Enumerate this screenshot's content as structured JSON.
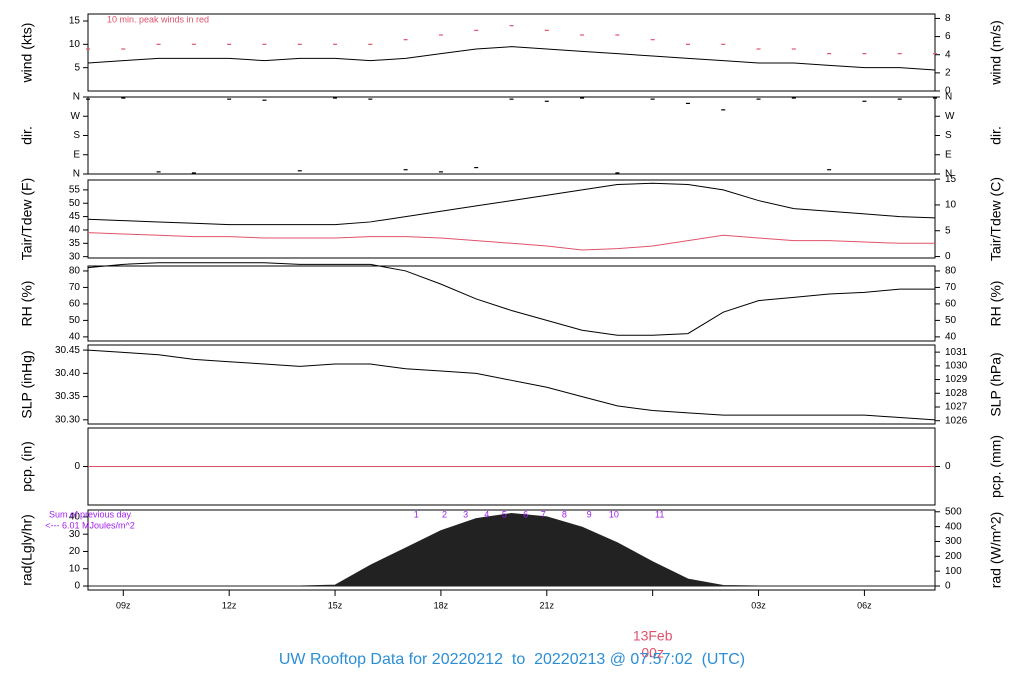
{
  "chart_data": [
    {
      "type": "line",
      "ylabel": "wind (kts)",
      "y2label": "wind (m/s)",
      "annotation": "10 min. peak winds in red",
      "ylim": [
        0,
        16.5
      ],
      "yticks": [
        5,
        10,
        15
      ],
      "y2lim": [
        0,
        8.49
      ],
      "y2ticks": [
        0,
        2,
        4,
        6,
        8
      ],
      "x": [
        8,
        9,
        10,
        11,
        12,
        13,
        14,
        15,
        16,
        17,
        18,
        19,
        20,
        21,
        22,
        23,
        24,
        25,
        26,
        27,
        28,
        29,
        30,
        31,
        32
      ],
      "series": [
        {
          "name": "wind",
          "color": "#000000",
          "style": "line",
          "values": [
            6,
            6.5,
            7,
            7,
            7,
            6.5,
            7,
            7,
            6.5,
            7,
            8,
            9,
            9.5,
            9,
            8.5,
            8,
            7.5,
            7,
            6.5,
            6,
            6,
            5.5,
            5,
            5,
            4.5
          ]
        },
        {
          "name": "peak",
          "color": "#df536b",
          "style": "dash",
          "values": [
            9,
            9,
            10,
            10,
            10,
            10,
            10,
            10,
            10,
            11,
            12,
            13,
            14,
            13,
            12,
            12,
            11,
            10,
            10,
            9,
            9,
            8,
            8,
            8,
            8
          ]
        }
      ]
    },
    {
      "type": "scatter",
      "ylabel": "dir.",
      "y2label": "dir.",
      "ylim": [
        0,
        360
      ],
      "yticks": [
        {
          "value": 0,
          "label": "N"
        },
        {
          "value": 90,
          "label": "E"
        },
        {
          "value": 180,
          "label": "S"
        },
        {
          "value": 270,
          "label": "W"
        },
        {
          "value": 360,
          "label": "N"
        }
      ],
      "y2lim": [
        0,
        360
      ],
      "y2ticks": [
        {
          "value": 0,
          "label": "N"
        },
        {
          "value": 90,
          "label": "E"
        },
        {
          "value": 180,
          "label": "S"
        },
        {
          "value": 270,
          "label": "W"
        },
        {
          "value": 360,
          "label": "N"
        }
      ],
      "x": [
        8,
        9,
        10,
        11,
        12,
        13,
        14,
        15,
        16,
        17,
        18,
        19,
        20,
        21,
        22,
        23,
        24,
        25,
        26,
        27,
        28,
        29,
        30,
        31,
        32
      ],
      "series": [
        {
          "name": "dir",
          "color": "#000000",
          "style": "dash",
          "values": [
            350,
            355,
            10,
            5,
            350,
            345,
            15,
            355,
            350,
            20,
            10,
            30,
            350,
            340,
            355,
            5,
            350,
            330,
            300,
            350,
            355,
            20,
            340,
            350,
            355
          ]
        }
      ]
    },
    {
      "type": "line",
      "ylabel": "Tair/Tdew (F)",
      "y2label": "Tair/Tdew (C)",
      "ylim": [
        29.5,
        58.7
      ],
      "yticks": [
        30,
        35,
        40,
        45,
        50,
        55
      ],
      "y2lim": [
        -0.28,
        14.83
      ],
      "y2ticks": [
        0,
        5,
        10,
        15
      ],
      "x": [
        8,
        9,
        10,
        11,
        12,
        13,
        14,
        15,
        16,
        17,
        18,
        19,
        20,
        21,
        22,
        23,
        24,
        25,
        26,
        27,
        28,
        29,
        30,
        31,
        32
      ],
      "series": [
        {
          "name": "Tair",
          "color": "#000000",
          "style": "line",
          "values": [
            44,
            43.5,
            43,
            42.5,
            42,
            42,
            42,
            42,
            43,
            45,
            47,
            49,
            51,
            53,
            55,
            57,
            57.5,
            57,
            55,
            51,
            48,
            47,
            46,
            45,
            44.5
          ]
        },
        {
          "name": "Tdew",
          "color": "#df536b",
          "style": "line",
          "values": [
            39,
            38.5,
            38,
            37.5,
            37.5,
            37,
            37,
            37,
            37.5,
            37.5,
            37,
            36,
            35,
            34,
            32.5,
            33,
            34,
            36,
            38,
            37,
            36,
            36,
            35.5,
            35,
            35
          ]
        }
      ]
    },
    {
      "type": "line",
      "ylabel": "RH (%)",
      "y2label": "RH (%)",
      "ylim": [
        37.5,
        83
      ],
      "yticks": [
        40,
        50,
        60,
        70,
        80
      ],
      "y2lim": [
        37.5,
        83
      ],
      "y2ticks": [
        40,
        50,
        60,
        70,
        80
      ],
      "x": [
        8,
        9,
        10,
        11,
        12,
        13,
        14,
        15,
        16,
        17,
        18,
        19,
        20,
        21,
        22,
        23,
        24,
        25,
        26,
        27,
        28,
        29,
        30,
        31,
        32
      ],
      "series": [
        {
          "name": "RH",
          "color": "#000000",
          "style": "line",
          "values": [
            82,
            84,
            85,
            85,
            85,
            85,
            84,
            84,
            84,
            80,
            72,
            63,
            56,
            50,
            44,
            41,
            41,
            42,
            55,
            62,
            64,
            66,
            67,
            69,
            69
          ]
        }
      ]
    },
    {
      "type": "line",
      "ylabel": "SLP (inHg)",
      "y2label": "SLP (hPa)",
      "ylim": [
        30.291,
        30.461
      ],
      "yticks": [
        {
          "value": 30.3,
          "label": "30.30"
        },
        30.35,
        {
          "value": 30.4,
          "label": "30.40"
        },
        30.45
      ],
      "y2lim": [
        1025.76,
        1031.52
      ],
      "y2ticks": [
        1026,
        1027,
        1028,
        1029,
        1030,
        1031
      ],
      "x": [
        8,
        9,
        10,
        11,
        12,
        13,
        14,
        15,
        16,
        17,
        18,
        19,
        20,
        21,
        22,
        23,
        24,
        25,
        26,
        27,
        28,
        29,
        30,
        31,
        32
      ],
      "series": [
        {
          "name": "SLP",
          "color": "#000000",
          "style": "line",
          "values": [
            30.45,
            30.445,
            30.44,
            30.43,
            30.425,
            30.42,
            30.415,
            30.42,
            30.42,
            30.41,
            30.405,
            30.4,
            30.385,
            30.37,
            30.35,
            30.33,
            30.32,
            30.315,
            30.31,
            30.31,
            30.31,
            30.31,
            30.31,
            30.305,
            30.3
          ]
        }
      ]
    },
    {
      "type": "line",
      "ylabel": "pcp. (in)",
      "y2label": "pcp. (mm)",
      "ylim": [
        -1,
        1
      ],
      "yticks": [
        0
      ],
      "y2lim": [
        -25.4,
        25.4
      ],
      "y2ticks": [
        0
      ],
      "x": [
        8,
        9,
        10,
        11,
        12,
        13,
        14,
        15,
        16,
        17,
        18,
        19,
        20,
        21,
        22,
        23,
        24,
        25,
        26,
        27,
        28,
        29,
        30,
        31,
        32
      ],
      "series": [
        {
          "name": "pcp",
          "color": "#df536b",
          "style": "line",
          "values": [
            0,
            0,
            0,
            0,
            0,
            0,
            0,
            0,
            0,
            0,
            0,
            0,
            0,
            0,
            0,
            0,
            0,
            0,
            0,
            0,
            0,
            0,
            0,
            0,
            0
          ]
        }
      ]
    },
    {
      "type": "area",
      "ylabel": "rad(Lgly/hr)",
      "y2label": "rad (W/m^2)",
      "ylim": [
        -2.3,
        44
      ],
      "yticks": [
        0,
        10,
        20,
        30,
        40
      ],
      "y2lim": [
        -27,
        512
      ],
      "y2ticks": [
        0,
        100,
        200,
        300,
        400,
        500
      ],
      "notes": [
        "Sum of previous day",
        "<--- 6.01 MJoules/m^2"
      ],
      "hour_labels": {
        "x": [
          17.3,
          18.1,
          18.7,
          19.3,
          19.8,
          20.4,
          20.9,
          21.5,
          22.2,
          22.9,
          24.2
        ],
        "labels": [
          "1",
          "2",
          "3",
          "4",
          "5",
          "6",
          "7",
          "8",
          "9",
          "10",
          "11"
        ]
      },
      "x": [
        8,
        9,
        10,
        11,
        12,
        13,
        14,
        15,
        16,
        17,
        18,
        19,
        20,
        21,
        22,
        23,
        24,
        25,
        26,
        27,
        28,
        29,
        30,
        31,
        32
      ],
      "xlim": [
        8,
        32
      ],
      "xticks": [
        {
          "value": 9,
          "label": "09z"
        },
        {
          "value": 12,
          "label": "12z"
        },
        {
          "value": 15,
          "label": "15z"
        },
        {
          "value": 18,
          "label": "18z"
        },
        {
          "value": 21,
          "label": "21z"
        },
        {
          "value": 24,
          "label": "00z"
        },
        {
          "value": 27,
          "label": "03z"
        },
        {
          "value": 30,
          "label": "06z"
        }
      ],
      "date_label": {
        "value": 24,
        "label": "13Feb"
      },
      "title": "UW Rooftop Data for 20220212  to  20220213 @ 07:57:02  (UTC)",
      "series": [
        {
          "name": "rad",
          "color": "#222222",
          "values": [
            0,
            0,
            0,
            0,
            0,
            0,
            0,
            0.5,
            12,
            22,
            32,
            39,
            42,
            40,
            34,
            25,
            14,
            4,
            0.3,
            0,
            0,
            0,
            0,
            0,
            0
          ]
        }
      ]
    }
  ]
}
